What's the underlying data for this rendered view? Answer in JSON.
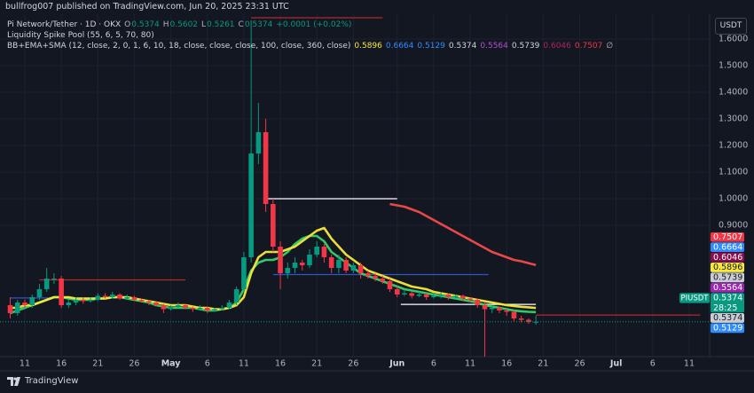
{
  "page": {
    "published": "bullfrog007 published on TradingView.com, Jun 20, 2025 23:31 UTC",
    "footer": "TradingView"
  },
  "chart_data": {
    "type": "candlestick",
    "title": "Pi Network/Tether · 1D · OKX",
    "ohlc": [
      {
        "label": "O",
        "value": "0.5374"
      },
      {
        "label": "H",
        "value": "0.5602"
      },
      {
        "label": "L",
        "value": "0.5261"
      },
      {
        "label": "C",
        "value": "0.5374"
      }
    ],
    "change": "+0.0001 (+0.02%)",
    "indicators": [
      {
        "name": "Liquidity Spike Pool (55, 6, 5, 70, 80)",
        "values": []
      },
      {
        "name": "BB+EMA+SMA (12, close, 2, 0, 1, 6, 10, 18, close, close, close, 100, close, 360, close)",
        "values": [
          {
            "text": "0.5896",
            "color": "#f7e93b"
          },
          {
            "text": "0.6664",
            "color": "#2f8cff"
          },
          {
            "text": "0.5129",
            "color": "#2f8cff"
          },
          {
            "text": "0.5374",
            "color": "#d1d4dc"
          },
          {
            "text": "0.5564",
            "color": "#b04fd8"
          },
          {
            "text": "0.5739",
            "color": "#d1d4dc"
          },
          {
            "text": "0.6046",
            "color": "#b0245e"
          },
          {
            "text": "0.7507",
            "color": "#f23645"
          },
          {
            "text": "∅",
            "color": "#b2b5be"
          }
        ]
      }
    ],
    "currency": "USDT",
    "up_color": "#089981",
    "down_color": "#f23645",
    "open": [
      0.6,
      0.57,
      0.61,
      0.6,
      0.63,
      0.66,
      0.7,
      0.7,
      0.6,
      0.61,
      0.62,
      0.615,
      0.62,
      0.635,
      0.63,
      0.64,
      0.625,
      0.63,
      0.62,
      0.615,
      0.61,
      0.6,
      0.585,
      0.595,
      0.6,
      0.59,
      0.585,
      0.59,
      0.58,
      0.585,
      0.59,
      0.61,
      0.66,
      0.78,
      1.17,
      1.25,
      0.98,
      0.82,
      0.72,
      0.74,
      0.76,
      0.75,
      0.79,
      0.82,
      0.78,
      0.74,
      0.77,
      0.73,
      0.75,
      0.72,
      0.71,
      0.7,
      0.69,
      0.66,
      0.64,
      0.645,
      0.635,
      0.64,
      0.63,
      0.635,
      0.64,
      0.63,
      0.635,
      0.625,
      0.62,
      0.6,
      0.585,
      0.59,
      0.58,
      0.575,
      0.55,
      0.545,
      0.5374
    ],
    "high": [
      0.63,
      0.62,
      0.62,
      0.64,
      0.68,
      0.74,
      0.72,
      0.71,
      0.62,
      0.63,
      0.63,
      0.63,
      0.645,
      0.645,
      0.65,
      0.645,
      0.64,
      0.635,
      0.625,
      0.62,
      0.615,
      0.605,
      0.6,
      0.61,
      0.605,
      0.595,
      0.6,
      0.595,
      0.59,
      0.6,
      0.62,
      0.67,
      0.8,
      1.67,
      1.36,
      1.3,
      1.0,
      0.84,
      0.76,
      0.78,
      0.77,
      0.81,
      0.84,
      0.83,
      0.79,
      0.79,
      0.78,
      0.76,
      0.76,
      0.73,
      0.72,
      0.71,
      0.7,
      0.67,
      0.655,
      0.65,
      0.65,
      0.645,
      0.645,
      0.65,
      0.645,
      0.64,
      0.64,
      0.63,
      0.625,
      0.61,
      0.6,
      0.595,
      0.585,
      0.58,
      0.56,
      0.55,
      0.5602
    ],
    "low": [
      0.55,
      0.56,
      0.59,
      0.59,
      0.62,
      0.65,
      0.68,
      0.59,
      0.59,
      0.6,
      0.605,
      0.61,
      0.615,
      0.625,
      0.625,
      0.62,
      0.62,
      0.615,
      0.61,
      0.6,
      0.595,
      0.57,
      0.58,
      0.59,
      0.585,
      0.575,
      0.58,
      0.57,
      0.575,
      0.58,
      0.585,
      0.6,
      0.65,
      0.76,
      1.13,
      0.95,
      0.8,
      0.66,
      0.7,
      0.72,
      0.73,
      0.74,
      0.78,
      0.76,
      0.72,
      0.72,
      0.72,
      0.72,
      0.7,
      0.7,
      0.69,
      0.68,
      0.65,
      0.63,
      0.635,
      0.625,
      0.63,
      0.62,
      0.625,
      0.625,
      0.62,
      0.625,
      0.615,
      0.61,
      0.59,
      0.4,
      0.57,
      0.57,
      0.56,
      0.54,
      0.535,
      0.53,
      0.5261
    ],
    "close": [
      0.57,
      0.61,
      0.6,
      0.63,
      0.66,
      0.7,
      0.7,
      0.6,
      0.61,
      0.62,
      0.615,
      0.62,
      0.635,
      0.63,
      0.64,
      0.625,
      0.63,
      0.62,
      0.615,
      0.61,
      0.6,
      0.585,
      0.595,
      0.6,
      0.59,
      0.585,
      0.59,
      0.58,
      0.585,
      0.59,
      0.61,
      0.66,
      0.78,
      1.17,
      1.25,
      0.98,
      0.82,
      0.72,
      0.74,
      0.76,
      0.75,
      0.79,
      0.82,
      0.78,
      0.74,
      0.77,
      0.73,
      0.75,
      0.72,
      0.71,
      0.7,
      0.69,
      0.66,
      0.64,
      0.645,
      0.635,
      0.64,
      0.63,
      0.635,
      0.64,
      0.63,
      0.635,
      0.625,
      0.62,
      0.6,
      0.585,
      0.59,
      0.58,
      0.575,
      0.55,
      0.545,
      0.5373,
      0.5374
    ],
    "overlays": [
      {
        "color": "#35d36a",
        "values": [
          0.57,
          0.58,
          0.59,
          0.6,
          0.61,
          0.62,
          0.63,
          0.63,
          0.625,
          0.62,
          0.62,
          0.62,
          0.625,
          0.625,
          0.63,
          0.63,
          0.625,
          0.62,
          0.615,
          0.61,
          0.6,
          0.595,
          0.59,
          0.59,
          0.59,
          0.59,
          0.585,
          0.58,
          0.58,
          0.585,
          0.59,
          0.61,
          0.66,
          0.73,
          0.76,
          0.77,
          0.77,
          0.78,
          0.8,
          0.83,
          0.85,
          0.86,
          0.86,
          0.84,
          0.8,
          0.78,
          0.76,
          0.74,
          0.72,
          0.71,
          0.7,
          0.69,
          0.68,
          0.67,
          0.66,
          0.655,
          0.65,
          0.645,
          0.64,
          0.635,
          0.63,
          0.625,
          0.62,
          0.615,
          0.61,
          0.6,
          0.595,
          0.59,
          0.585,
          0.58,
          0.577,
          0.575,
          0.5739
        ]
      },
      {
        "color": "#f7e93b",
        "values": [
          0.59,
          0.59,
          0.6,
          0.6,
          0.61,
          0.62,
          0.63,
          0.63,
          0.63,
          0.625,
          0.625,
          0.625,
          0.625,
          0.625,
          0.63,
          0.63,
          0.63,
          0.625,
          0.62,
          0.615,
          0.61,
          0.605,
          0.6,
          0.6,
          0.6,
          0.595,
          0.59,
          0.59,
          0.585,
          0.585,
          0.59,
          0.6,
          0.63,
          0.72,
          0.78,
          0.8,
          0.8,
          0.8,
          0.81,
          0.82,
          0.84,
          0.86,
          0.88,
          0.89,
          0.85,
          0.82,
          0.79,
          0.77,
          0.75,
          0.73,
          0.72,
          0.71,
          0.7,
          0.69,
          0.68,
          0.67,
          0.665,
          0.66,
          0.65,
          0.645,
          0.64,
          0.635,
          0.63,
          0.625,
          0.62,
          0.615,
          0.61,
          0.605,
          0.6,
          0.597,
          0.594,
          0.592,
          0.5896
        ]
      },
      {
        "color": "#f24b4b",
        "values": [
          null,
          null,
          null,
          null,
          null,
          null,
          null,
          null,
          null,
          null,
          null,
          null,
          null,
          null,
          null,
          null,
          null,
          null,
          null,
          null,
          null,
          null,
          null,
          null,
          null,
          null,
          null,
          null,
          null,
          null,
          null,
          null,
          null,
          null,
          null,
          null,
          null,
          null,
          null,
          null,
          null,
          null,
          null,
          null,
          null,
          null,
          null,
          null,
          null,
          null,
          null,
          null,
          0.98,
          0.975,
          0.97,
          0.96,
          0.95,
          0.935,
          0.92,
          0.905,
          0.89,
          0.875,
          0.86,
          0.845,
          0.83,
          0.815,
          0.8,
          0.79,
          0.78,
          0.77,
          0.765,
          0.758,
          0.7507
        ]
      }
    ],
    "levels": [
      {
        "value": 1.68,
        "from": 33,
        "to": 51,
        "color": "#b22a2a"
      },
      {
        "value": 1.0,
        "from": 35,
        "to": 53,
        "color": "#ffffff"
      },
      {
        "value": 0.715,
        "from": 36,
        "to": 65.5,
        "color": "#2f56c8"
      },
      {
        "value": 0.695,
        "from": 4,
        "to": 24,
        "color": "#b22a2a"
      },
      {
        "value": 0.627,
        "from": 0,
        "to": 17,
        "color": "#2f56c8"
      },
      {
        "value": 0.603,
        "from": 53.5,
        "to": 72,
        "color": "#ffffff"
      },
      {
        "value": 0.563,
        "from": 72,
        "to": 94.5,
        "color": "#b22a2a"
      }
    ],
    "xlim": [
      -1.4,
      95.8
    ],
    "ylim": [
      0.4,
      1.7
    ],
    "xticks": [
      {
        "value": 2,
        "label": "11"
      },
      {
        "value": 7,
        "label": "16"
      },
      {
        "value": 12,
        "label": "21"
      },
      {
        "value": 17,
        "label": "26"
      },
      {
        "value": 22,
        "label": "May"
      },
      {
        "value": 27,
        "label": "6"
      },
      {
        "value": 32,
        "label": "11"
      },
      {
        "value": 37,
        "label": "16"
      },
      {
        "value": 42,
        "label": "21"
      },
      {
        "value": 47,
        "label": "26"
      },
      {
        "value": 53,
        "label": "Jun"
      },
      {
        "value": 58,
        "label": "6"
      },
      {
        "value": 63,
        "label": "11"
      },
      {
        "value": 68,
        "label": "16"
      },
      {
        "value": 73,
        "label": "21"
      },
      {
        "value": 78,
        "label": "26"
      },
      {
        "value": 83,
        "label": "Jul"
      },
      {
        "value": 88,
        "label": "6"
      },
      {
        "value": 93,
        "label": "11"
      }
    ],
    "yticks": [
      {
        "value": 0.9,
        "label": "0.9000"
      },
      {
        "value": 1.0,
        "label": "1.0000"
      },
      {
        "value": 1.1,
        "label": "1.1000"
      },
      {
        "value": 1.2,
        "label": "1.2000"
      },
      {
        "value": 1.3,
        "label": "1.3000"
      },
      {
        "value": 1.4,
        "label": "1.4000"
      },
      {
        "value": 1.5,
        "label": "1.5000"
      },
      {
        "value": 1.6,
        "label": "1.6000"
      }
    ],
    "grid": true,
    "price_labels": [
      {
        "value": 0.7507,
        "color": "#f23645"
      },
      {
        "value": 0.6664,
        "color": "#2f8cff"
      },
      {
        "value": 0.6046,
        "color": "#880e4f"
      },
      {
        "value": 0.5896,
        "color": "#f7e93b"
      },
      {
        "value": 0.5739,
        "color": "#c9ccd3"
      },
      {
        "value": 0.5564,
        "color": "#9c27b0"
      },
      {
        "value": 0.5374,
        "color": "#089981",
        "symbol": "PIUSDT",
        "countdown": "28:25"
      },
      {
        "value": 0.5374,
        "color": "#c9ccd3"
      },
      {
        "value": 0.5129,
        "color": "#2f8cff"
      }
    ]
  }
}
